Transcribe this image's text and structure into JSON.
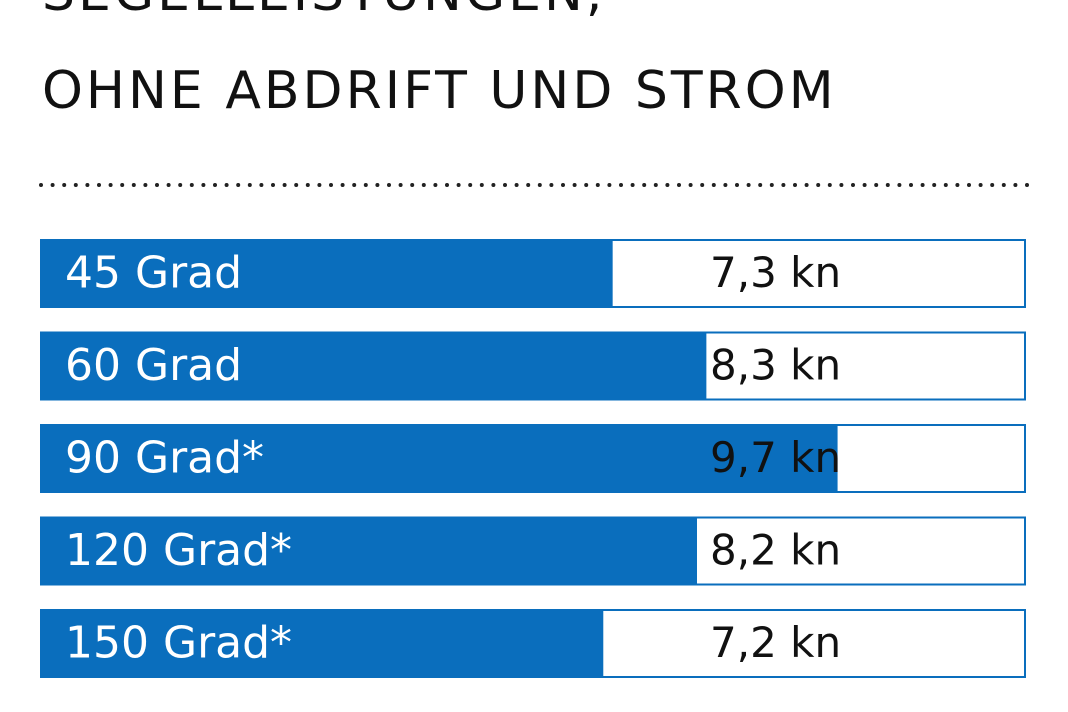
{
  "chart_data": {
    "type": "hbar",
    "title": "SEGELLEISTUNGEN,",
    "subtitle": "OHNE ABDRIFT UND STROM",
    "categories": [
      "45 Grad",
      "60 Grad",
      "90 Grad*",
      "120 Grad*",
      "150 Grad*"
    ],
    "values": [
      7.3,
      8.3,
      9.7,
      8.2,
      7.2
    ],
    "value_labels": [
      "7,3 kn",
      "8,3 kn",
      "9,7 kn",
      "8,2 kn",
      "7,2 kn"
    ],
    "xlim": [
      1.2,
      11.7
    ],
    "color": "#0a6ebd"
  }
}
